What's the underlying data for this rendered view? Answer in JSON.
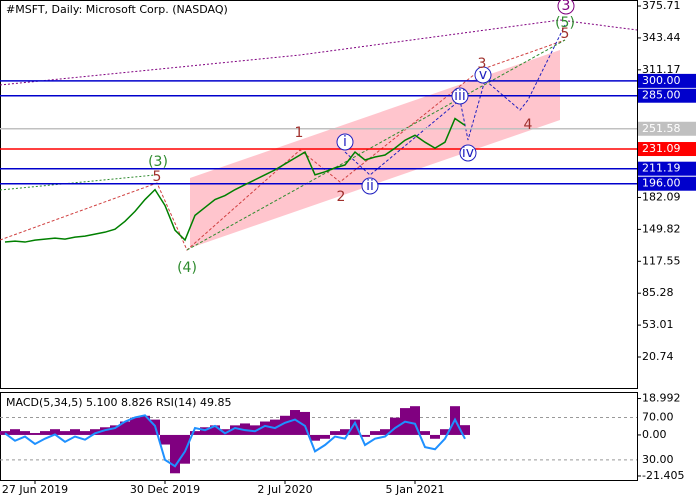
{
  "chart_data": {
    "type": "line",
    "title": "#MSFT, Daily:  Microsoft Corp. (NASDAQ)",
    "categories": [
      null,
      null,
      null,
      "27 Jun 2019",
      null,
      null,
      null,
      null,
      null,
      null,
      null,
      null,
      null,
      null,
      null,
      null,
      "30 Dec 2019",
      null,
      null,
      null,
      null,
      null,
      null,
      null,
      null,
      null,
      null,
      null,
      "2 Jul 2020",
      null,
      null,
      null,
      null,
      null,
      null,
      null,
      null,
      null,
      null,
      null,
      null,
      "5 Jan 2021",
      null,
      null,
      null,
      null,
      null
    ],
    "series": [
      {
        "name": "MSFT",
        "color": "#008000",
        "values": [
          137,
          138,
          137,
          139,
          140,
          141,
          140,
          142,
          143,
          145,
          147,
          150,
          158,
          168,
          180,
          190,
          174,
          149,
          139,
          164,
          172,
          180,
          184,
          190,
          195,
          200,
          205,
          210,
          216,
          222,
          228,
          205,
          208,
          212,
          215,
          228,
          220,
          223,
          225,
          232,
          240,
          245,
          238,
          232,
          238,
          262,
          255
        ]
      }
    ],
    "ylim": [
      -10.6,
      381.8
    ],
    "yticks": [
      375.71,
      343.44,
      311.17,
      182.09,
      149.82,
      117.55,
      85.28,
      53.01,
      20.74
    ],
    "levels": [
      {
        "value": 300,
        "label": "300.00",
        "color": "#0000cc"
      },
      {
        "value": 285,
        "label": "285.00",
        "color": "#0000cc"
      },
      {
        "value": 251.58,
        "color": "#c0c0c0"
      },
      {
        "value": 231.09,
        "color": "#ff0000"
      },
      {
        "value": 211.19,
        "color": "#0000cc"
      },
      {
        "value": 196,
        "label": "196.00",
        "color": "#0000cc"
      }
    ],
    "annotations": [
      {
        "text": "(3)",
        "color": "#2e8b2e"
      },
      {
        "text": "5",
        "color": "#a0302c"
      },
      {
        "text": "(4)",
        "color": "#2e8b2e"
      },
      {
        "text": "1",
        "color": "#a0302c"
      },
      {
        "text": "2",
        "color": "#a0302c"
      },
      {
        "text": "i",
        "color": "#2020c0",
        "circled": true
      },
      {
        "text": "ii",
        "color": "#2020c0",
        "circled": true
      },
      {
        "text": "iii",
        "color": "#2020c0",
        "circled": true
      },
      {
        "text": "iv",
        "color": "#2020c0",
        "circled": true
      },
      {
        "text": "v",
        "color": "#2020c0",
        "circled": true
      },
      {
        "text": "3",
        "color": "#a0302c"
      },
      {
        "text": "4",
        "color": "#a0302c"
      },
      {
        "text": "(5)",
        "color": "#2e8b2e"
      },
      {
        "text": "5",
        "color": "#a0302c"
      },
      {
        "text": "3",
        "color": "#800080",
        "circled": true
      }
    ],
    "indicator": {
      "label": "MACD(5,34,5) 5.100 8.826 RSI(14) 49.85",
      "macd_color": "#800080",
      "rsi_color": "#1e90ff",
      "macd": [
        2,
        3,
        2,
        1,
        2,
        3,
        2,
        3,
        2,
        3,
        4,
        5,
        7,
        9,
        10,
        8,
        -5,
        -20,
        -15,
        2,
        4,
        5,
        3,
        5,
        6,
        5,
        7,
        8,
        10,
        13,
        12,
        -3,
        -2,
        2,
        3,
        8,
        -1,
        2,
        3,
        9,
        14,
        15,
        2,
        -2,
        3,
        15,
        5.1
      ],
      "rsi": [
        55,
        48,
        52,
        45,
        50,
        54,
        47,
        52,
        49,
        55,
        58,
        60,
        66,
        70,
        72,
        62,
        30,
        24,
        38,
        60,
        58,
        62,
        55,
        60,
        58,
        57,
        62,
        60,
        65,
        68,
        62,
        38,
        44,
        52,
        50,
        65,
        44,
        50,
        52,
        60,
        66,
        64,
        42,
        40,
        50,
        68,
        49.85
      ],
      "ylim": [
        -23.5,
        22.4
      ],
      "yticks": [
        18.992,
        {
          "value": 0,
          "label": "0.00"
        },
        -21.405
      ],
      "y2lim": [
        11,
        94
      ],
      "y2ticks": [
        {
          "value": 70,
          "label": "70.00"
        },
        {
          "value": 30,
          "label": "30.00"
        }
      ]
    }
  }
}
